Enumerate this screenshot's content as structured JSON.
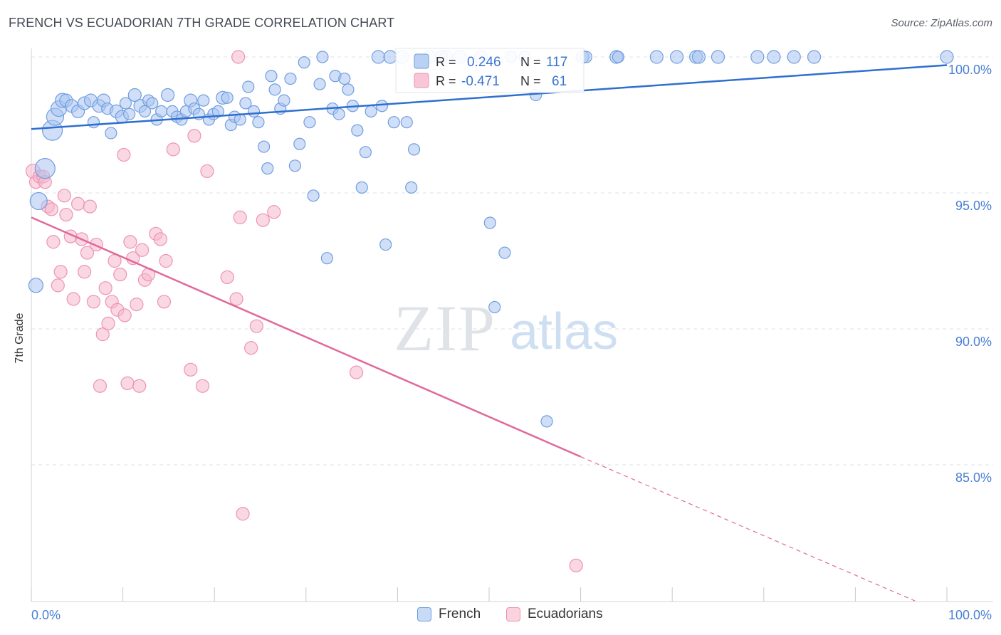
{
  "title": "FRENCH VS ECUADORIAN 7TH GRADE CORRELATION CHART",
  "source": "Source: ZipAtlas.com",
  "watermark": {
    "zip": "ZIP",
    "atlas": "atlas"
  },
  "colors": {
    "french_fill": "#a9c5f0",
    "french_stroke": "#6f9ee0",
    "french_line": "#2f6fcf",
    "ecuadorian_fill": "#f6b8cc",
    "ecuadorian_stroke": "#ee93b1",
    "ecuadorian_line": "#e0699a",
    "tick_label": "#4a7fd4",
    "grid": "#dde2e8"
  },
  "legend_box": {
    "rows": [
      {
        "r_label": "R =",
        "r_value": "0.246",
        "n_label": "N =",
        "n_value": "117"
      },
      {
        "r_label": "R =",
        "r_value": "-0.471",
        "n_label": "N =",
        "n_value": "61"
      }
    ]
  },
  "bottom_legend": [
    {
      "label": "French"
    },
    {
      "label": "Ecuadorians"
    }
  ],
  "chart_data": {
    "type": "scatter",
    "title": "FRENCH VS ECUADORIAN 7TH GRADE CORRELATION CHART",
    "xlabel": "",
    "ylabel": "7th Grade",
    "xlim": [
      0,
      100
    ],
    "ylim": [
      80,
      100.6
    ],
    "x_tick_labels": [
      "0.0%",
      "100.0%"
    ],
    "y_ticks": [
      85,
      90,
      95,
      100
    ],
    "y_tick_labels": [
      "85.0%",
      "90.0%",
      "95.0%",
      "100.0%"
    ],
    "grid": true,
    "legend_position": "top-center",
    "series": [
      {
        "name": "French",
        "r": 0.246,
        "n": 117,
        "trend": {
          "x0": 0,
          "y0": 97.35,
          "x1": 100,
          "y1": 99.7
        },
        "points": [
          [
            2.3,
            97.3,
            14
          ],
          [
            1.5,
            95.9,
            14
          ],
          [
            0.8,
            94.7,
            12
          ],
          [
            0.5,
            91.6,
            10
          ],
          [
            2.6,
            97.8,
            12
          ],
          [
            3.0,
            98.1,
            11
          ],
          [
            3.4,
            98.4,
            10
          ],
          [
            3.8,
            98.4,
            9
          ],
          [
            4.4,
            98.2,
            9
          ],
          [
            5.1,
            98.0,
            9
          ],
          [
            5.8,
            98.3,
            9
          ],
          [
            6.5,
            98.4,
            9
          ],
          [
            6.8,
            97.6,
            8
          ],
          [
            7.4,
            98.2,
            9
          ],
          [
            7.9,
            98.4,
            9
          ],
          [
            8.3,
            98.1,
            8
          ],
          [
            8.7,
            97.2,
            8
          ],
          [
            9.3,
            98.0,
            9
          ],
          [
            9.9,
            97.8,
            9
          ],
          [
            10.3,
            98.3,
            8
          ],
          [
            10.7,
            97.9,
            8
          ],
          [
            11.3,
            98.6,
            9
          ],
          [
            11.9,
            98.2,
            9
          ],
          [
            12.4,
            98.0,
            8
          ],
          [
            12.8,
            98.4,
            8
          ],
          [
            13.2,
            98.3,
            8
          ],
          [
            13.7,
            97.7,
            8
          ],
          [
            14.2,
            98.0,
            8
          ],
          [
            14.9,
            98.6,
            9
          ],
          [
            15.4,
            98.0,
            8
          ],
          [
            15.9,
            97.8,
            8
          ],
          [
            16.4,
            97.7,
            8
          ],
          [
            16.9,
            98.0,
            8
          ],
          [
            17.4,
            98.4,
            9
          ],
          [
            17.8,
            98.1,
            8
          ],
          [
            18.3,
            97.9,
            8
          ],
          [
            18.8,
            98.4,
            8
          ],
          [
            19.4,
            97.7,
            8
          ],
          [
            19.9,
            97.9,
            8
          ],
          [
            20.4,
            98.0,
            8
          ],
          [
            20.9,
            98.5,
            9
          ],
          [
            21.4,
            98.5,
            8
          ],
          [
            21.8,
            97.5,
            8
          ],
          [
            22.2,
            97.8,
            8
          ],
          [
            22.8,
            97.7,
            8
          ],
          [
            23.4,
            98.3,
            8
          ],
          [
            23.7,
            98.9,
            8
          ],
          [
            24.3,
            98.0,
            8
          ],
          [
            24.8,
            97.6,
            8
          ],
          [
            25.4,
            96.7,
            8
          ],
          [
            25.8,
            95.9,
            8
          ],
          [
            26.2,
            99.3,
            8
          ],
          [
            26.6,
            98.8,
            8
          ],
          [
            27.2,
            98.1,
            8
          ],
          [
            27.6,
            98.4,
            8
          ],
          [
            28.3,
            99.2,
            8
          ],
          [
            28.8,
            96.0,
            8
          ],
          [
            29.3,
            96.8,
            8
          ],
          [
            29.8,
            99.8,
            8
          ],
          [
            30.4,
            97.6,
            8
          ],
          [
            30.8,
            94.9,
            8
          ],
          [
            31.5,
            99.0,
            8
          ],
          [
            31.8,
            100.0,
            8
          ],
          [
            32.3,
            92.6,
            8
          ],
          [
            32.9,
            98.1,
            8
          ],
          [
            33.2,
            99.3,
            8
          ],
          [
            33.6,
            97.9,
            8
          ],
          [
            34.2,
            99.2,
            8
          ],
          [
            34.6,
            98.8,
            8
          ],
          [
            35.1,
            98.2,
            8
          ],
          [
            35.6,
            97.3,
            8
          ],
          [
            36.1,
            95.2,
            8
          ],
          [
            36.5,
            96.5,
            8
          ],
          [
            37.1,
            98.0,
            8
          ],
          [
            37.9,
            100.0,
            9
          ],
          [
            38.3,
            98.2,
            8
          ],
          [
            38.7,
            93.1,
            8
          ],
          [
            39.2,
            100.0,
            9
          ],
          [
            39.6,
            97.6,
            8
          ],
          [
            40.5,
            100.0,
            9
          ],
          [
            41.0,
            97.6,
            8
          ],
          [
            41.5,
            95.2,
            8
          ],
          [
            41.8,
            96.6,
            8
          ],
          [
            43.5,
            100.0,
            9
          ],
          [
            44.8,
            100.0,
            9
          ],
          [
            45.3,
            100.0,
            9
          ],
          [
            46.8,
            100.0,
            9
          ],
          [
            49.1,
            100.0,
            9
          ],
          [
            50.1,
            93.9,
            8
          ],
          [
            50.6,
            90.8,
            8
          ],
          [
            51.7,
            92.8,
            8
          ],
          [
            52.4,
            100.0,
            8
          ],
          [
            53.9,
            100.0,
            8
          ],
          [
            55.1,
            98.6,
            8
          ],
          [
            56.3,
            86.6,
            8
          ],
          [
            60.2,
            100.0,
            9
          ],
          [
            60.6,
            100.0,
            8
          ],
          [
            63.9,
            100.0,
            9
          ],
          [
            64.1,
            100.0,
            8
          ],
          [
            68.3,
            100.0,
            9
          ],
          [
            70.5,
            100.0,
            9
          ],
          [
            72.6,
            100.0,
            9
          ],
          [
            72.9,
            100.0,
            9
          ],
          [
            75.0,
            100.0,
            9
          ],
          [
            79.3,
            100.0,
            9
          ],
          [
            81.1,
            100.0,
            9
          ],
          [
            83.3,
            100.0,
            9
          ],
          [
            85.5,
            100.0,
            9
          ],
          [
            100.0,
            100.0,
            9
          ]
        ]
      },
      {
        "name": "Ecuadorians",
        "r": -0.471,
        "n": 61,
        "trend": {
          "x0": 0,
          "y0": 94.1,
          "x1": 60,
          "y1": 85.3,
          "dash_to_x": 96.5,
          "dash_to_y": 80.0
        },
        "points": [
          [
            0.2,
            95.8,
            10
          ],
          [
            0.5,
            95.4,
            9
          ],
          [
            0.9,
            95.6,
            9
          ],
          [
            1.3,
            95.6,
            9
          ],
          [
            1.5,
            95.4,
            9
          ],
          [
            1.8,
            94.5,
            9
          ],
          [
            2.2,
            94.4,
            9
          ],
          [
            2.4,
            93.2,
            9
          ],
          [
            2.9,
            91.6,
            9
          ],
          [
            3.2,
            92.1,
            9
          ],
          [
            3.6,
            94.9,
            9
          ],
          [
            3.8,
            94.2,
            9
          ],
          [
            4.3,
            93.4,
            9
          ],
          [
            4.6,
            91.1,
            9
          ],
          [
            5.1,
            94.6,
            9
          ],
          [
            5.5,
            93.3,
            9
          ],
          [
            5.8,
            92.1,
            9
          ],
          [
            6.1,
            92.8,
            9
          ],
          [
            6.4,
            94.5,
            9
          ],
          [
            6.8,
            91.0,
            9
          ],
          [
            7.1,
            93.1,
            9
          ],
          [
            7.5,
            87.9,
            9
          ],
          [
            7.8,
            89.8,
            9
          ],
          [
            8.1,
            91.5,
            9
          ],
          [
            8.4,
            90.2,
            9
          ],
          [
            8.8,
            91.0,
            9
          ],
          [
            9.1,
            92.5,
            9
          ],
          [
            9.4,
            90.7,
            9
          ],
          [
            9.7,
            92.0,
            9
          ],
          [
            10.1,
            96.4,
            9
          ],
          [
            10.2,
            90.5,
            9
          ],
          [
            10.5,
            88.0,
            9
          ],
          [
            10.8,
            93.2,
            9
          ],
          [
            11.1,
            92.6,
            9
          ],
          [
            11.5,
            90.9,
            9
          ],
          [
            11.8,
            87.9,
            9
          ],
          [
            12.1,
            92.9,
            9
          ],
          [
            12.4,
            91.8,
            9
          ],
          [
            12.8,
            92.0,
            9
          ],
          [
            13.6,
            93.5,
            9
          ],
          [
            14.1,
            93.3,
            9
          ],
          [
            14.5,
            91.0,
            9
          ],
          [
            14.7,
            92.5,
            9
          ],
          [
            15.5,
            96.6,
            9
          ],
          [
            17.4,
            88.5,
            9
          ],
          [
            17.8,
            97.1,
            9
          ],
          [
            18.7,
            87.9,
            9
          ],
          [
            19.2,
            95.8,
            9
          ],
          [
            21.4,
            91.9,
            9
          ],
          [
            22.4,
            91.1,
            9
          ],
          [
            22.6,
            100.0,
            9
          ],
          [
            22.8,
            94.1,
            9
          ],
          [
            23.1,
            83.2,
            9
          ],
          [
            24.0,
            89.3,
            9
          ],
          [
            24.6,
            90.1,
            9
          ],
          [
            25.3,
            94.0,
            9
          ],
          [
            26.5,
            94.3,
            9
          ],
          [
            35.5,
            88.4,
            9
          ],
          [
            59.5,
            81.3,
            9
          ]
        ]
      }
    ]
  }
}
